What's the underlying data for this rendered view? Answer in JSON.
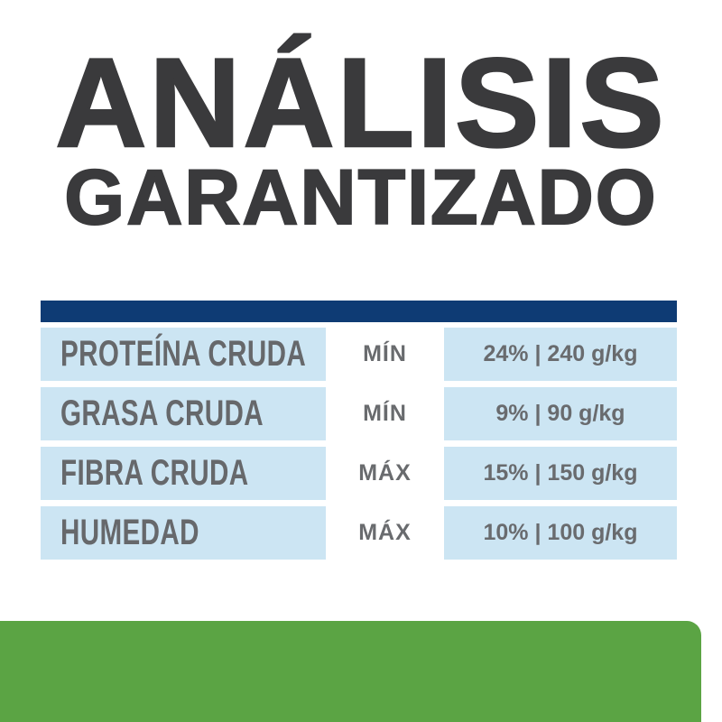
{
  "title": {
    "line1": "ANÁLISIS",
    "line2": "GARANTIZADO"
  },
  "table": {
    "rows": [
      {
        "label": "PROTEÍNA CRUDA",
        "qualifier": "MÍN",
        "value": "24% | 240 g/kg"
      },
      {
        "label": "GRASA CRUDA",
        "qualifier": "MÍN",
        "value": "9% | 90 g/kg"
      },
      {
        "label": "FIBRA CRUDA",
        "qualifier": "MÁX",
        "value": "15% | 150 g/kg"
      },
      {
        "label": "HUMEDAD",
        "qualifier": "MÁX",
        "value": "10% | 100 g/kg"
      }
    ]
  },
  "colors": {
    "title_text": "#3a3a3c",
    "header_bar": "#0e3b74",
    "row_background": "#cce5f3",
    "row_text": "#66686b",
    "value_text": "#696b6e",
    "footer_band": "#5ba444",
    "page_background": "#ffffff"
  }
}
